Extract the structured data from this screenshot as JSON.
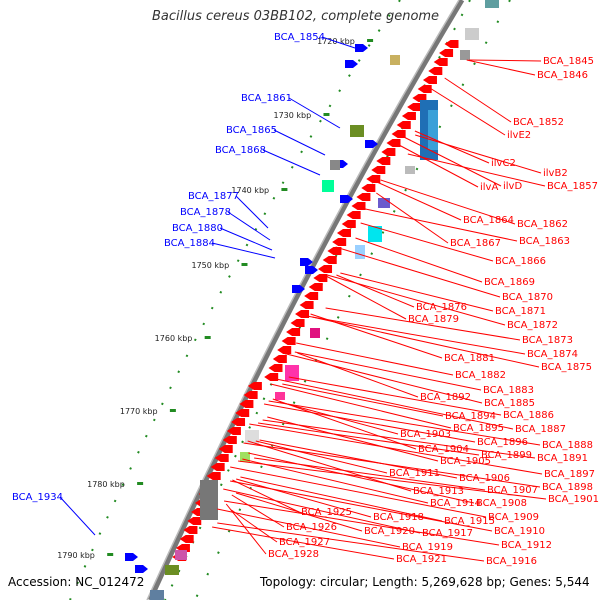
{
  "title": "Bacillus cereus 03BB102, complete genome",
  "accession": "Accession: NC_012472",
  "summary": "Topology: circular; Length: 5,269,628 bp; Genes: 5,544",
  "colors": {
    "forward": "#0000ff",
    "reverse": "#ff0000",
    "backbone": "#777777",
    "tick": "#228b22"
  },
  "ticks": [
    "1720 kbp",
    "1730 kbp",
    "1740 kbp",
    "1750 kbp",
    "1760 kbp",
    "1770 kbp",
    "1780 kbp",
    "1790 kbp"
  ],
  "forward_labels": [
    "BCA_1854",
    "BCA_1861",
    "BCA_1865",
    "BCA_1868",
    "BCA_1877",
    "BCA_1878",
    "BCA_1880",
    "BCA_1884",
    "BCA_1934"
  ],
  "reverse_labels": [
    "BCA_1845",
    "BCA_1846",
    "BCA_1852",
    "ilvE2",
    "ilvC2",
    "ilvB2",
    "ilvA",
    "ilvD",
    "BCA_1857",
    "BCA_1864",
    "BCA_1862",
    "BCA_1867",
    "BCA_1863",
    "BCA_1866",
    "BCA_1869",
    "BCA_1870",
    "BCA_1876",
    "BCA_1871",
    "BCA_1879",
    "BCA_1872",
    "BCA_1873",
    "BCA_1874",
    "BCA_1881",
    "BCA_1875",
    "BCA_1882",
    "BCA_1883",
    "BCA_1892",
    "BCA_1885",
    "BCA_1894",
    "BCA_1886",
    "BCA_1895",
    "BCA_1887",
    "BCA_1903",
    "BCA_1896",
    "BCA_1888",
    "BCA_1904",
    "BCA_1899",
    "BCA_1891",
    "BCA_1905",
    "BCA_1897",
    "BCA_1911",
    "BCA_1906",
    "BCA_1898",
    "BCA_1913",
    "BCA_1907",
    "BCA_1901",
    "BCA_1914",
    "BCA_1908",
    "BCA_1925",
    "BCA_1918",
    "BCA_1915",
    "BCA_1909",
    "BCA_1926",
    "BCA_1920",
    "BCA_1917",
    "BCA_1910",
    "BCA_1927",
    "BCA_1919",
    "BCA_1912",
    "BCA_1928",
    "BCA_1921",
    "BCA_1916"
  ]
}
